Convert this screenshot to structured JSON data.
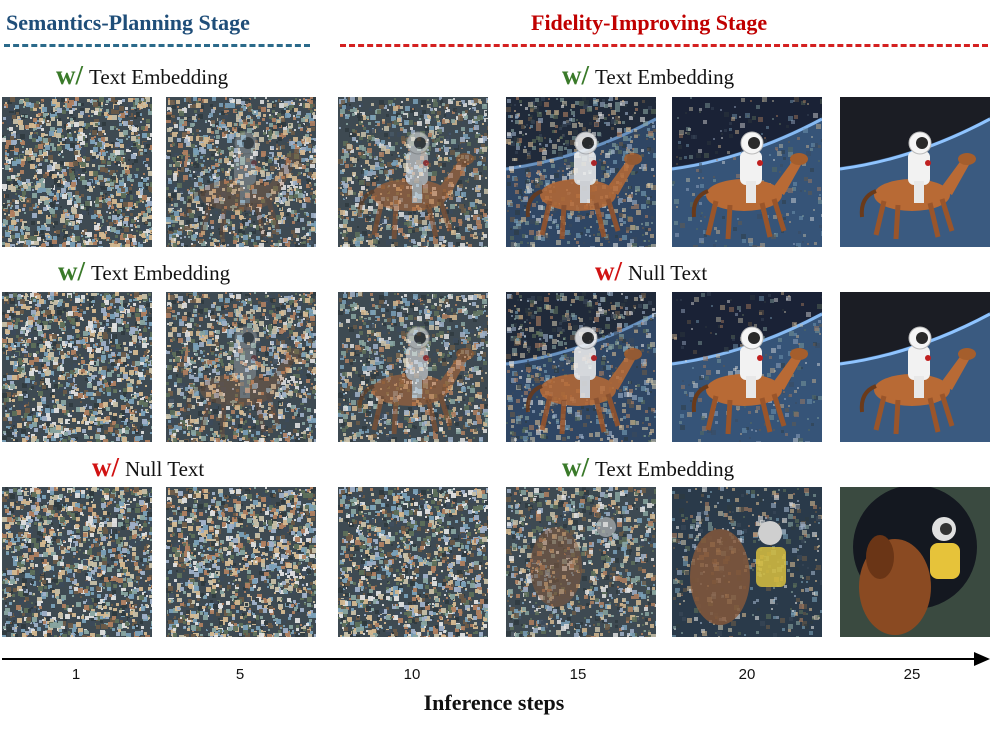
{
  "stages": {
    "semantics": {
      "title": "Semantics-Planning Stage",
      "color": "#1f4e79"
    },
    "fidelity": {
      "title": "Fidelity-Improving Stage",
      "color": "#c00000"
    }
  },
  "colors": {
    "text_embedding_w": "#3a7a2a",
    "null_text_w": "#d11212"
  },
  "rows": [
    {
      "left_label": {
        "prefix": "w/",
        "text": "Text Embedding",
        "condition": "text"
      },
      "right_label": {
        "prefix": "w/",
        "text": "Text Embedding",
        "condition": "text"
      },
      "tiles": [
        "noise",
        "noise-faint-figure",
        "partial-astronaut-horse",
        "emerging-astronaut-horse",
        "astronaut-horse-earth",
        "clean-astronaut-horse"
      ]
    },
    {
      "left_label": {
        "prefix": "w/",
        "text": "Text Embedding",
        "condition": "text"
      },
      "right_label": {
        "prefix": "w/",
        "text": "Null Text",
        "condition": "null"
      },
      "tiles": [
        "noise",
        "noise-faint-figure",
        "partial-astronaut-horse",
        "emerging-astronaut-horse",
        "astronaut-horse-earth",
        "clean-astronaut-horse"
      ]
    },
    {
      "left_label": {
        "prefix": "w/",
        "text": "Null Text",
        "condition": "null"
      },
      "right_label": {
        "prefix": "w/",
        "text": "Text Embedding",
        "condition": "text"
      },
      "tiles": [
        "noise",
        "noise",
        "noise",
        "noise-abstract-figures",
        "abstract-figures",
        "surreal-horse-astronaut"
      ]
    }
  ],
  "axis": {
    "ticks": [
      "1",
      "5",
      "10",
      "15",
      "20",
      "25"
    ],
    "label": "Inference steps"
  }
}
